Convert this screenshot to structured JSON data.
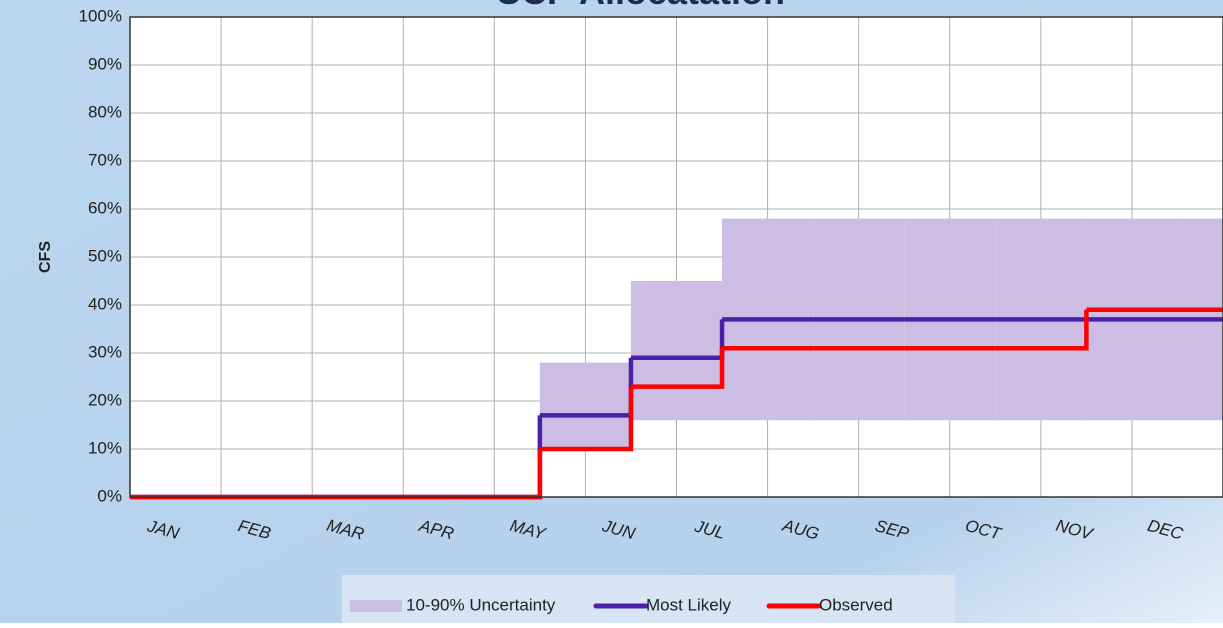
{
  "chart_data": {
    "type": "step",
    "title": "CCP Allocatation",
    "y_label": "CFS",
    "categories": [
      "JAN",
      "FEB",
      "MAR",
      "APR",
      "MAY",
      "JUN",
      "JUL",
      "AUG",
      "SEP",
      "OCT",
      "NOV",
      "DEC"
    ],
    "band": {
      "name": "10-90% Uncertainty",
      "color": "#cbbde3",
      "low": [
        0,
        0,
        0,
        0,
        10,
        16,
        16,
        16,
        16,
        16,
        16,
        16
      ],
      "high": [
        0,
        0,
        0,
        0,
        28,
        45,
        58,
        58,
        58,
        58,
        58,
        58
      ]
    },
    "series": [
      {
        "name": "Most Likely",
        "color": "#4b1fa8",
        "values": [
          0,
          0,
          0,
          0,
          17,
          29,
          37,
          37,
          37,
          37,
          37,
          37
        ]
      },
      {
        "name": "Observed",
        "color": "#ff0000",
        "values": [
          0,
          0,
          0,
          0,
          10,
          23,
          31,
          31,
          31,
          31,
          39,
          39
        ]
      }
    ],
    "ylim": [
      0,
      100
    ],
    "yticks": [
      {
        "value": 0,
        "label": "0%"
      },
      {
        "value": 10,
        "label": "10%"
      },
      {
        "value": 20,
        "label": "20%"
      },
      {
        "value": 30,
        "label": "30%"
      },
      {
        "value": 40,
        "label": "40%"
      },
      {
        "value": 50,
        "label": "50%"
      },
      {
        "value": 60,
        "label": "60%"
      },
      {
        "value": 70,
        "label": "70%"
      },
      {
        "value": 80,
        "label": "80%"
      },
      {
        "value": 90,
        "label": "90%"
      },
      {
        "value": 100,
        "label": "100%"
      }
    ],
    "grid": true
  }
}
